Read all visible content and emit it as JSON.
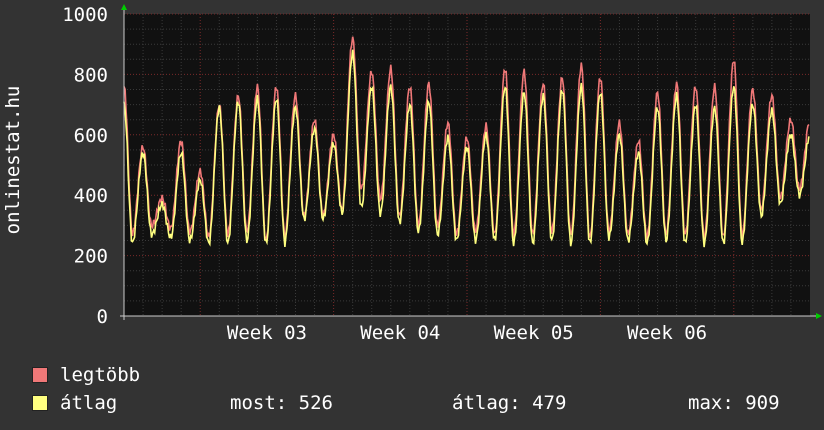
{
  "chart_data": {
    "type": "line",
    "ylabel": "onlinestat.hu",
    "ylim": [
      0,
      1000
    ],
    "yticks": [
      0,
      200,
      400,
      600,
      800,
      1000
    ],
    "xtick_labels": [
      "Week 03",
      "Week 04",
      "Week 05",
      "Week 06"
    ],
    "grid": true,
    "colors": {
      "background": "#333333",
      "plot": "#111111",
      "grid": "#3a3a3a",
      "major_grid": "#7a2a2a",
      "axis": "#cccccc",
      "arrow": "#00cc00"
    },
    "series": [
      {
        "name": "legtöbb",
        "color": "#f07878",
        "daily": [
          [
            760,
            270
          ],
          [
            560,
            300
          ],
          [
            390,
            290
          ],
          [
            580,
            280
          ],
          [
            480,
            260
          ],
          [
            700,
            270
          ],
          [
            730,
            280
          ],
          [
            760,
            250
          ],
          [
            760,
            260
          ],
          [
            730,
            330
          ],
          [
            650,
            330
          ],
          [
            600,
            350
          ],
          [
            920,
            420
          ],
          [
            810,
            390
          ],
          [
            820,
            330
          ],
          [
            760,
            300
          ],
          [
            770,
            300
          ],
          [
            640,
            270
          ],
          [
            590,
            280
          ],
          [
            630,
            270
          ],
          [
            820,
            270
          ],
          [
            810,
            270
          ],
          [
            770,
            280
          ],
          [
            790,
            270
          ],
          [
            830,
            260
          ],
          [
            790,
            280
          ],
          [
            640,
            270
          ],
          [
            580,
            260
          ],
          [
            740,
            270
          ],
          [
            770,
            270
          ],
          [
            760,
            260
          ],
          [
            760,
            260
          ],
          [
            850,
            260
          ],
          [
            750,
            350
          ],
          [
            730,
            390
          ],
          [
            650,
            420
          ]
        ]
      },
      {
        "name": "átlag",
        "color": "#ffff80",
        "daily": [
          [
            700,
            240
          ],
          [
            540,
            270
          ],
          [
            370,
            260
          ],
          [
            540,
            250
          ],
          [
            450,
            240
          ],
          [
            690,
            240
          ],
          [
            710,
            250
          ],
          [
            720,
            240
          ],
          [
            720,
            240
          ],
          [
            690,
            320
          ],
          [
            620,
            320
          ],
          [
            570,
            340
          ],
          [
            870,
            360
          ],
          [
            760,
            340
          ],
          [
            760,
            310
          ],
          [
            700,
            280
          ],
          [
            710,
            270
          ],
          [
            590,
            250
          ],
          [
            560,
            250
          ],
          [
            600,
            250
          ],
          [
            760,
            240
          ],
          [
            740,
            240
          ],
          [
            730,
            250
          ],
          [
            750,
            240
          ],
          [
            760,
            240
          ],
          [
            740,
            260
          ],
          [
            600,
            250
          ],
          [
            540,
            240
          ],
          [
            690,
            250
          ],
          [
            730,
            240
          ],
          [
            700,
            240
          ],
          [
            690,
            240
          ],
          [
            760,
            240
          ],
          [
            700,
            330
          ],
          [
            680,
            370
          ],
          [
            600,
            400
          ]
        ]
      }
    ]
  },
  "legend": [
    {
      "label": "legtöbb",
      "color": "#f07878"
    },
    {
      "label": "átlag",
      "color": "#ffff80"
    }
  ],
  "stats": {
    "most": "most: 526",
    "atlag": "átlag: 479",
    "max": "max: 909"
  }
}
